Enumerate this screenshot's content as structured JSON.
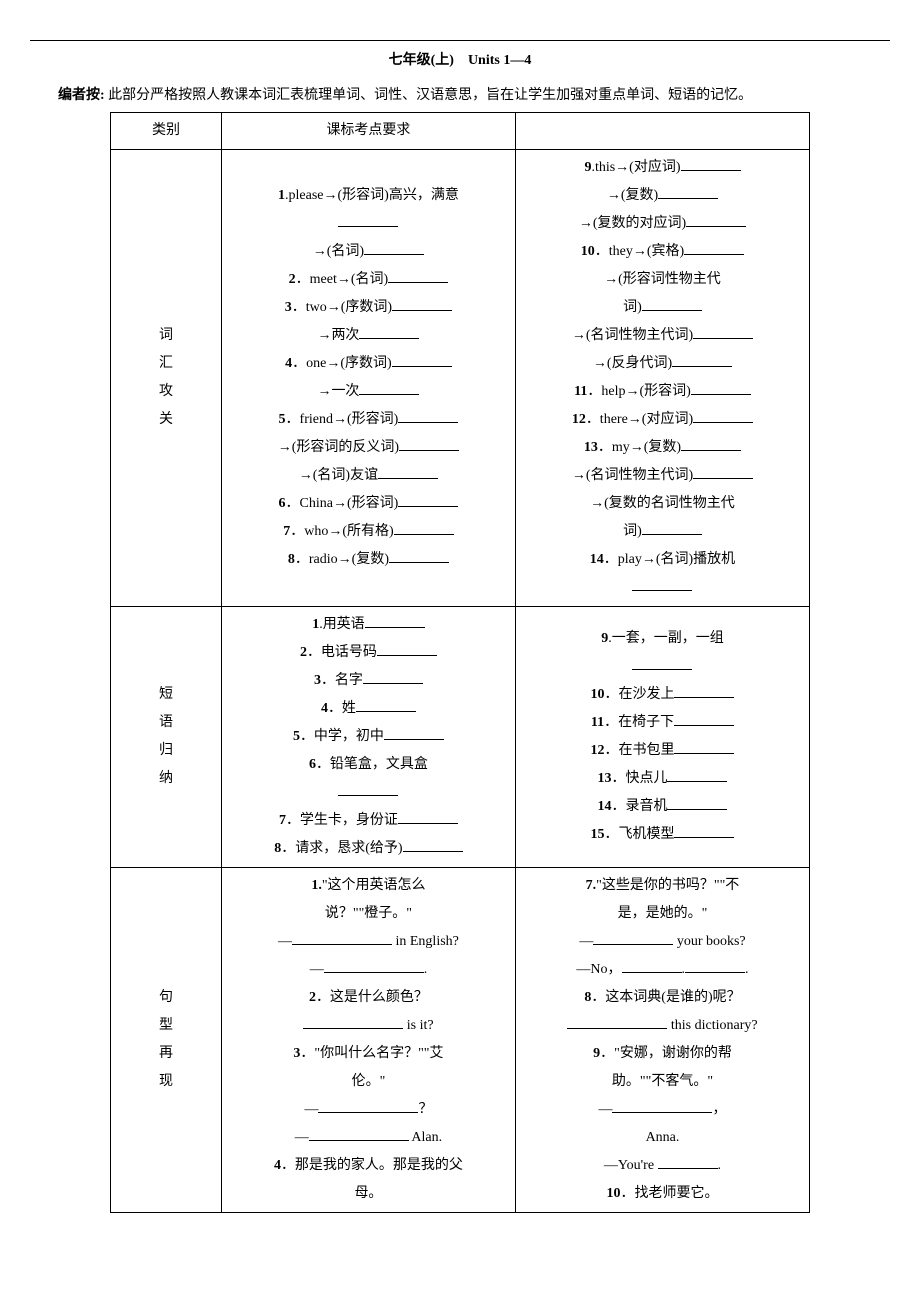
{
  "title": "七年级(上)　Units 1—4",
  "intro_label": "编者按:",
  "intro_text": "此部分严格按照人教课本词汇表梳理单词、词性、汉语意思，旨在让学生加强对重点单词、短语的记忆。",
  "headers": {
    "cat": "类别",
    "req": "课标考点要求",
    "blank": ""
  },
  "section1": {
    "cat": [
      "词",
      "汇",
      "攻",
      "关"
    ],
    "left": [
      "1.please→(形容词)高兴，满意",
      "blankline",
      "→(名词)__",
      "2．meet→(名词)__",
      "3．two→(序数词)__",
      "→两次__",
      "4．one→(序数词)__",
      "→一次__",
      "5．friend→(形容词)__",
      "→(形容词的反义词)__",
      "→(名词)友谊__",
      "6．China→(形容词)__",
      "7．who→(所有格)__",
      "8．radio→(复数)__"
    ],
    "right": [
      "9.this→(对应词)__",
      "→(复数)__",
      "→(复数的对应词)__",
      "10．they→(宾格)__",
      "→(形容词性物主代",
      "词)__",
      "→(名词性物主代词)__",
      "→(反身代词)__",
      "11．help→(形容词)__",
      "12．there→(对应词)__",
      "13．my→(复数)__",
      "→(名词性物主代词)__",
      "→(复数的名词性物主代",
      "词)__",
      "14．play→(名词)播放机",
      "blankline"
    ]
  },
  "section2": {
    "cat": [
      "短",
      "语",
      "归",
      "纳"
    ],
    "left": [
      "1.用英语__",
      "2．电话号码__",
      "3．名字__",
      "4．姓__",
      "5．中学，初中__",
      "6．铅笔盒，文具盒",
      "blankline",
      "7．学生卡，身份证__",
      "8．请求，恳求(给予)__"
    ],
    "right": [
      "9.一套，一副，一组",
      "blankline",
      "10．在沙发上__",
      "11．在椅子下__",
      "12．在书包里__",
      "13．快点儿__",
      "14．录音机__",
      "15．飞机模型__"
    ]
  },
  "section3": {
    "cat": [
      "句",
      "型",
      "再",
      "现"
    ],
    "left_lines": {
      "l1a": "1.",
      "l1b": "\"这个用英语怎么",
      "l2": "说？\"\"橙子。\"",
      "l3b": " in English?",
      "l5a": "2",
      "l5b": "．这是什么颜色？",
      "l6b": " is it?",
      "l7a": "3",
      "l7b": "．\"你叫什么名字？\"\"艾",
      "l8": "伦。\"",
      "l9b": "？",
      "l10b": " Alan.",
      "l11a": "4",
      "l11b": "．那是我的家人。那是我的父",
      "l12": "母。"
    },
    "right_lines": {
      "r1a": "7.",
      "r1b": "\"这些是你的书吗？\"\"不",
      "r2": "是，是她的。\"",
      "r3b": " your books?",
      "r4a": "—No，",
      "r5a": "8",
      "r5b": "．这本词典(是谁的)呢？",
      "r6b": " this dictionary?",
      "r7a": "9",
      "r7b": "．\"安娜，谢谢你的帮",
      "r8": "助。\"\"不客气。\"",
      "r10": "Anna.",
      "r11a": "—You're ",
      "r11b": ".",
      "r12a": "10",
      "r12b": "．找老师要它。"
    }
  }
}
